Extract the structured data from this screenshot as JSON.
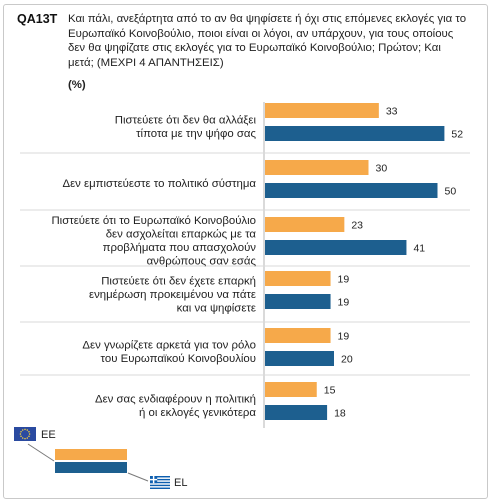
{
  "header": {
    "code": "QA13T",
    "question": "Και πάλι, ανεξάρτητα από το αν θα ψηφίσετε ή όχι στις επόμενες εκλογές για το Ευρωπαϊκό Κοινοβούλιο, ποιοι είναι οι λόγοι, αν υπάρχουν, για τους οποίους δεν θα ψηφίζατε στις εκλογές για το Ευρωπαϊκό Κοινοβούλιο; Πρώτον; Και μετά; (ΜΕΧΡΙ 4 ΑΠΑΝΤΗΣΕΙΣ)",
    "unit": "(%)"
  },
  "colors": {
    "EE": "#f6a94a",
    "EL": "#1d5f8f",
    "separator": "#d9d9d9",
    "legend_line": "#7a7a7a"
  },
  "chart_data": {
    "type": "bar",
    "orientation": "horizontal",
    "categories": [
      [
        "Πιστεύετε ότι δεν θα αλλάξει",
        "τίποτα με την ψήφο σας"
      ],
      [
        "Δεν εμπιστεύεστε το πολιτικό σύστημα"
      ],
      [
        "Πιστεύετε ότι το Ευρωπαϊκό Κοινοβούλιο",
        "δεν ασχολείται επαρκώς με τα",
        "προβλήματα που απασχολούν",
        "ανθρώπους σαν εσάς"
      ],
      [
        "Πιστεύετε ότι δεν έχετε επαρκή",
        "ενημέρωση προκειμένου να πάτε",
        "και να ψηφίσετε"
      ],
      [
        "Δεν γνωρίζετε αρκετά για τον ρόλο",
        "του Ευρωπαϊκού Κοινοβουλίου"
      ],
      [
        "Δεν σας ενδιαφέρουν η πολιτική",
        "ή οι εκλογές γενικότερα"
      ]
    ],
    "series": [
      {
        "name": "EE",
        "values": [
          33,
          30,
          23,
          19,
          19,
          15
        ]
      },
      {
        "name": "EL",
        "values": [
          52,
          50,
          41,
          19,
          20,
          18
        ]
      }
    ],
    "legend": [
      "EE",
      "EL"
    ],
    "legend_position": "bottom-left",
    "grid": false
  }
}
